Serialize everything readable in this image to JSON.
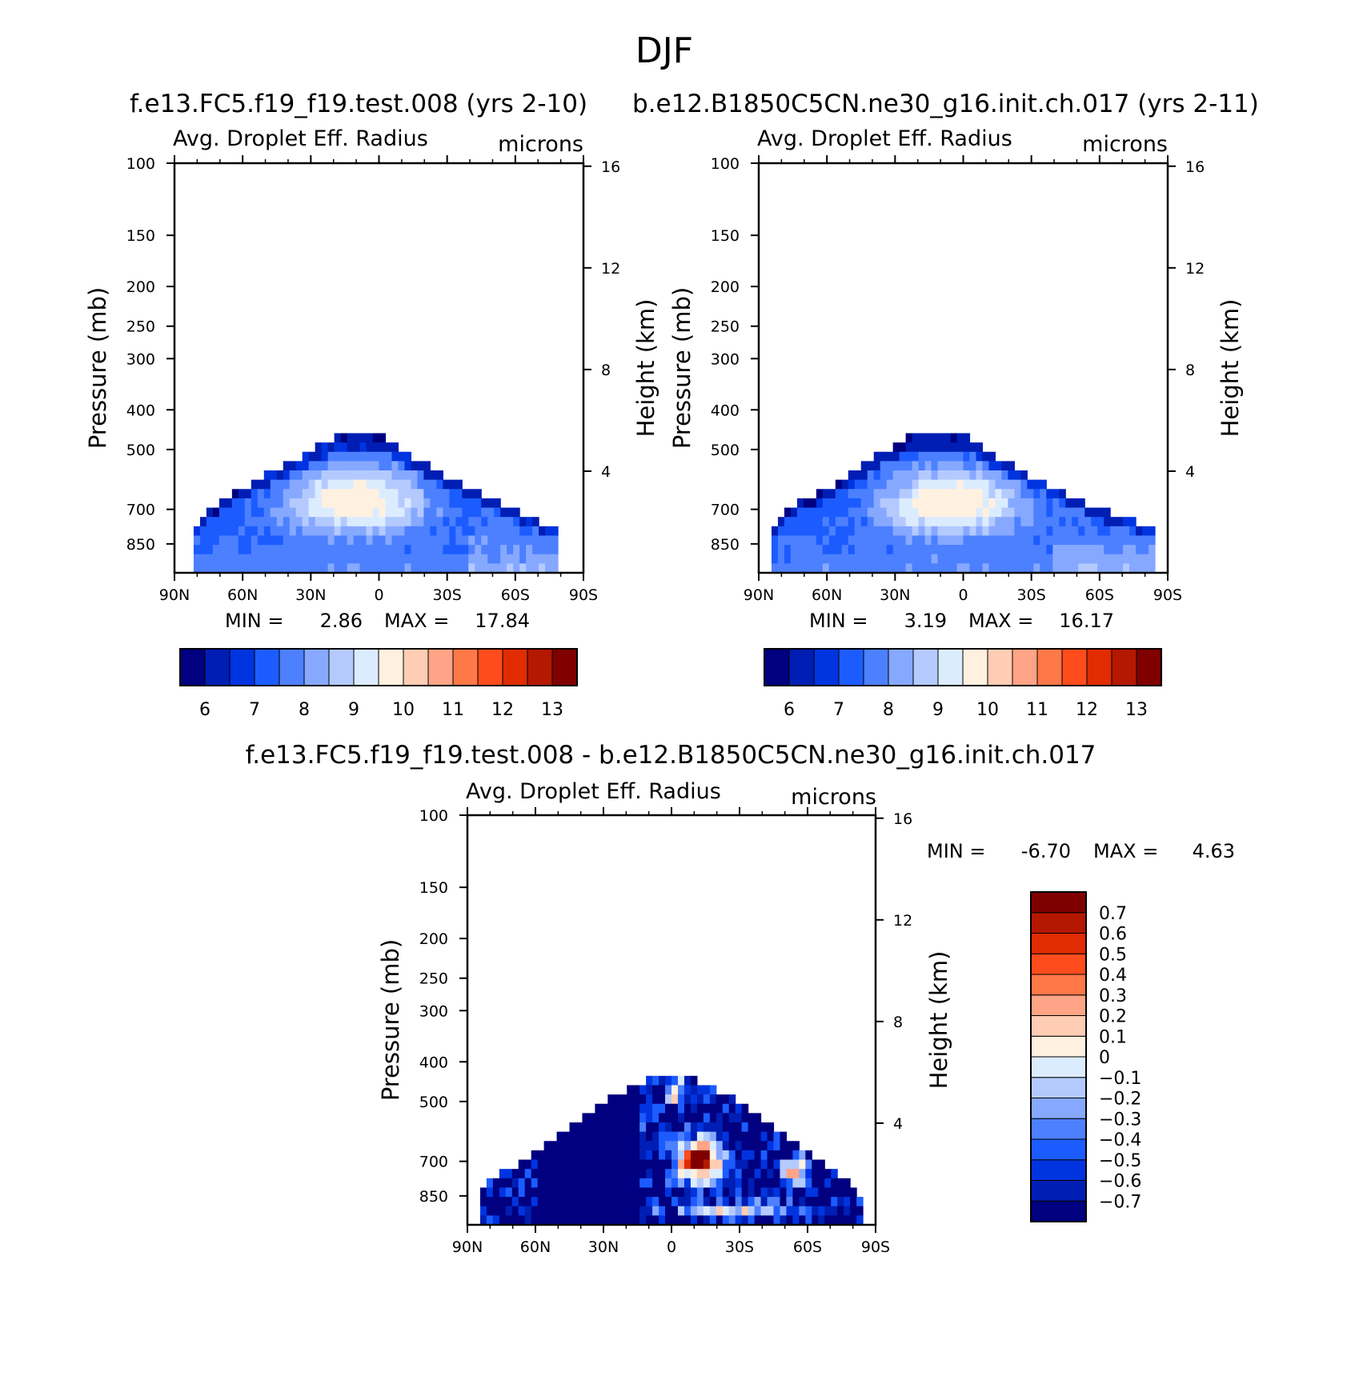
{
  "figure": {
    "title": "DJF",
    "diff_case_title": "f.e13.FC5.f19_f19.test.008 - b.e12.B1850C5CN.ne30_g16.init.ch.017"
  },
  "panels": [
    {
      "case_title": "f.e13.FC5.f19_f19.test.008 (yrs 2-10)",
      "variable": "Avg. Droplet Eff. Radius",
      "units": "microns",
      "ylabel_left": "Pressure (mb)",
      "ylabel_right": "Height (km)",
      "min_label": "MIN =",
      "min_value": "2.86",
      "max_label": "MAX =",
      "max_value": "17.84"
    },
    {
      "case_title": "b.e12.B1850C5CN.ne30_g16.init.ch.017 (yrs 2-11)",
      "variable": "Avg. Droplet Eff. Radius",
      "units": "microns",
      "ylabel_left": "Pressure (mb)",
      "ylabel_right": "Height (km)",
      "min_label": "MIN =",
      "min_value": "3.19",
      "max_label": "MAX =",
      "max_value": "16.17"
    },
    {
      "case_title": "",
      "variable": "Avg. Droplet Eff. Radius",
      "units": "microns",
      "ylabel_left": "Pressure (mb)",
      "ylabel_right": "Height (km)",
      "min_label": "MIN =",
      "min_value": "-6.70",
      "max_label": "MAX =",
      "max_value": "4.63"
    }
  ],
  "chart_data": [
    {
      "type": "heatmap",
      "title": "Avg. Droplet Eff. Radius",
      "units": "microns",
      "x_ticks": [
        "90N",
        "60N",
        "30N",
        "0",
        "30S",
        "60S",
        "90S"
      ],
      "x_range": [
        90,
        -90
      ],
      "y_ticks_left": [
        "100",
        "150",
        "200",
        "250",
        "300",
        "400",
        "500",
        "700",
        "850"
      ],
      "y_range": [
        100,
        1000
      ],
      "y_scale": "log",
      "y_ticks_right": [
        "16",
        "12",
        "8",
        "4"
      ],
      "levels": [
        6,
        7,
        8,
        9,
        10,
        11,
        12,
        13
      ],
      "colors": [
        "#000080",
        "#001eb4",
        "#0034e0",
        "#1c5cff",
        "#4c80ff",
        "#86a8ff",
        "#b4caff",
        "#dcecff",
        "#fff0e0",
        "#ffccb4",
        "#ffa486",
        "#ff7848",
        "#ff4c1c",
        "#e02c00",
        "#b41800",
        "#800000"
      ],
      "extent_pct_by_lat": [
        [
          -80,
          800
        ],
        [
          -60,
          700
        ],
        [
          -40,
          620
        ],
        [
          -20,
          540
        ],
        [
          0,
          455
        ],
        [
          15,
          455
        ],
        [
          35,
          520
        ],
        [
          55,
          600
        ],
        [
          70,
          660
        ],
        [
          82,
          780
        ]
      ],
      "core": {
        "center_lat": 10,
        "center_pct": 660,
        "max_approx": 13.5
      },
      "min": 2.86,
      "max": 17.84
    },
    {
      "type": "heatmap",
      "title": "Avg. Droplet Eff. Radius",
      "units": "microns",
      "x_ticks": [
        "90N",
        "60N",
        "30N",
        "0",
        "30S",
        "60S",
        "90S"
      ],
      "x_range": [
        90,
        -90
      ],
      "y_ticks_left": [
        "100",
        "150",
        "200",
        "250",
        "300",
        "400",
        "500",
        "700",
        "850"
      ],
      "y_range": [
        100,
        1000
      ],
      "y_scale": "log",
      "y_ticks_right": [
        "16",
        "12",
        "8",
        "4"
      ],
      "levels": [
        6,
        7,
        8,
        9,
        10,
        11,
        12,
        13
      ],
      "colors": [
        "#000080",
        "#001eb4",
        "#0034e0",
        "#1c5cff",
        "#4c80ff",
        "#86a8ff",
        "#b4caff",
        "#dcecff",
        "#fff0e0",
        "#ffccb4",
        "#ffa486",
        "#ff7848",
        "#ff4c1c",
        "#e02c00",
        "#b41800",
        "#800000"
      ],
      "extent_pct_by_lat": [
        [
          -85,
          780
        ],
        [
          -60,
          700
        ],
        [
          -40,
          620
        ],
        [
          -20,
          540
        ],
        [
          0,
          455
        ],
        [
          20,
          455
        ],
        [
          40,
          520
        ],
        [
          60,
          620
        ],
        [
          75,
          680
        ],
        [
          84,
          760
        ]
      ],
      "core": {
        "center_lat": 5,
        "center_pct": 670,
        "max_approx": 13.5
      },
      "min": 3.19,
      "max": 16.17
    },
    {
      "type": "heatmap",
      "title": "Avg. Droplet Eff. Radius",
      "units": "microns",
      "x_ticks": [
        "90N",
        "60N",
        "30N",
        "0",
        "30S",
        "60S",
        "90S"
      ],
      "x_range": [
        90,
        -90
      ],
      "y_ticks_left": [
        "100",
        "150",
        "200",
        "250",
        "300",
        "400",
        "500",
        "700",
        "850"
      ],
      "y_range": [
        100,
        1000
      ],
      "y_scale": "log",
      "y_ticks_right": [
        "16",
        "12",
        "8",
        "4"
      ],
      "levels": [
        -0.7,
        -0.6,
        -0.5,
        -0.4,
        -0.3,
        -0.2,
        -0.1,
        0,
        0.1,
        0.2,
        0.3,
        0.4,
        0.5,
        0.6,
        0.7
      ],
      "colors": [
        "#000080",
        "#001eb4",
        "#0034e0",
        "#1c5cff",
        "#4c80ff",
        "#86a8ff",
        "#b4caff",
        "#dcecff",
        "#fff0e0",
        "#ffccb4",
        "#ffa486",
        "#ff7848",
        "#ff4c1c",
        "#e02c00",
        "#b41800",
        "#800000"
      ],
      "extent_pct_by_lat": [
        [
          -83,
          840
        ],
        [
          -70,
          720
        ],
        [
          -50,
          600
        ],
        [
          -30,
          500
        ],
        [
          -10,
          440
        ],
        [
          10,
          440
        ],
        [
          30,
          500
        ],
        [
          50,
          600
        ],
        [
          70,
          720
        ],
        [
          83,
          800
        ]
      ],
      "min": -6.7,
      "max": 4.63
    }
  ]
}
